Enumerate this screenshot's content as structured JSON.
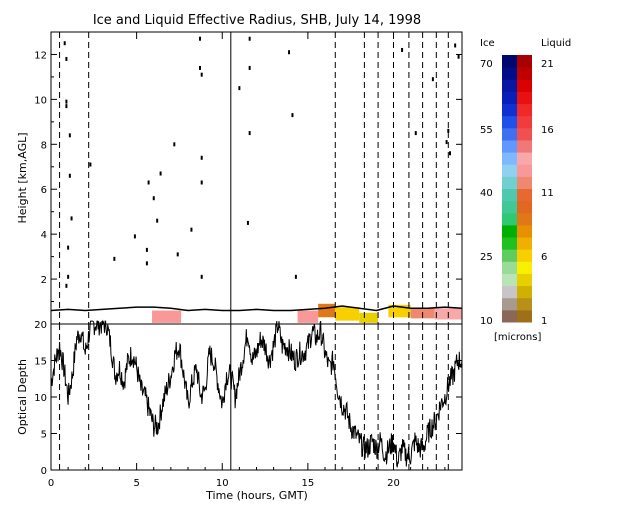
{
  "chart_data": [
    {
      "type": "heatmap",
      "title": "Ice and Liquid Effective Radius, SHB, July 14, 1998",
      "ylabel": "Height [km,AGL]",
      "xlim": [
        0,
        24
      ],
      "ylim": [
        0,
        13
      ],
      "y_ticks": [
        "2",
        "4",
        "6",
        "8",
        "10",
        "12"
      ],
      "vertical_dashed_lines_hours": [
        0.5,
        2.2,
        16.6,
        18.3,
        19.1,
        20.0,
        20.9,
        21.7,
        22.5,
        23.2
      ],
      "vertical_solid_line_hours": 10.5,
      "cloud_base_outline": [
        [
          0,
          0.6
        ],
        [
          1,
          0.65
        ],
        [
          2,
          0.6
        ],
        [
          3,
          0.65
        ],
        [
          4,
          0.7
        ],
        [
          5,
          0.75
        ],
        [
          6,
          0.75
        ],
        [
          7,
          0.7
        ],
        [
          8,
          0.6
        ],
        [
          9,
          0.65
        ],
        [
          10,
          0.6
        ],
        [
          11,
          0.6
        ],
        [
          12,
          0.65
        ],
        [
          13,
          0.6
        ],
        [
          14,
          0.6
        ],
        [
          15,
          0.65
        ],
        [
          16,
          0.7
        ],
        [
          17,
          0.8
        ],
        [
          18,
          0.7
        ],
        [
          19,
          0.6
        ],
        [
          20,
          0.8
        ],
        [
          21,
          0.7
        ],
        [
          22,
          0.7
        ],
        [
          23,
          0.75
        ],
        [
          24,
          0.7
        ]
      ],
      "liquid_patches": [
        {
          "t0": 5.9,
          "t1": 7.6,
          "z0": 0.05,
          "z1": 0.6,
          "radius_microns": 12
        },
        {
          "t0": 14.4,
          "t1": 15.6,
          "z0": 0.05,
          "z1": 0.6,
          "radius_microns": 12
        },
        {
          "t0": 15.6,
          "t1": 16.6,
          "z0": 0.3,
          "z1": 0.9,
          "radius_microns": 9
        },
        {
          "t0": 16.6,
          "t1": 18.0,
          "z0": 0.15,
          "z1": 0.75,
          "radius_microns": 6
        },
        {
          "t0": 18.0,
          "t1": 19.1,
          "z0": 0.05,
          "z1": 0.5,
          "radius_microns": 4
        },
        {
          "t0": 19.7,
          "t1": 21.0,
          "z0": 0.3,
          "z1": 0.85,
          "radius_microns": 6
        },
        {
          "t0": 21.0,
          "t1": 22.4,
          "z0": 0.25,
          "z1": 0.7,
          "radius_microns": 11
        },
        {
          "t0": 22.4,
          "t1": 24.0,
          "z0": 0.2,
          "z1": 0.7,
          "radius_microns": 13
        }
      ],
      "ice_specks": [
        [
          0.8,
          12.5
        ],
        [
          0.9,
          11.8
        ],
        [
          0.9,
          9.9
        ],
        [
          0.9,
          9.7
        ],
        [
          1.1,
          6.6
        ],
        [
          1.2,
          4.7
        ],
        [
          1.0,
          3.4
        ],
        [
          1.0,
          2.1
        ],
        [
          2.3,
          7.1
        ],
        [
          1.1,
          8.4
        ],
        [
          0.9,
          1.7
        ],
        [
          3.7,
          2.9
        ],
        [
          4.9,
          3.9
        ],
        [
          5.6,
          3.3
        ],
        [
          5.6,
          2.7
        ],
        [
          6.0,
          5.6
        ],
        [
          5.7,
          6.3
        ],
        [
          6.2,
          4.6
        ],
        [
          6.4,
          6.7
        ],
        [
          7.2,
          8.0
        ],
        [
          8.7,
          11.4
        ],
        [
          8.8,
          11.1
        ],
        [
          8.8,
          7.4
        ],
        [
          8.8,
          6.3
        ],
        [
          8.8,
          2.1
        ],
        [
          8.2,
          4.2
        ],
        [
          7.4,
          3.1
        ],
        [
          8.7,
          12.7
        ],
        [
          11.6,
          12.7
        ],
        [
          11.6,
          11.4
        ],
        [
          11.0,
          10.5
        ],
        [
          11.6,
          8.5
        ],
        [
          11.5,
          4.5
        ],
        [
          13.9,
          12.1
        ],
        [
          14.3,
          2.1
        ],
        [
          14.1,
          9.3
        ],
        [
          20.5,
          12.2
        ],
        [
          21.3,
          8.5
        ],
        [
          22.3,
          10.9
        ],
        [
          23.2,
          8.6
        ],
        [
          23.1,
          8.1
        ],
        [
          23.3,
          7.6
        ],
        [
          23.6,
          12.4
        ],
        [
          23.8,
          11.9
        ]
      ],
      "colorbar": {
        "ice_header": "Ice",
        "liquid_header": "Liquid",
        "ice_ticks": [
          "70",
          "55",
          "40",
          "25",
          "10"
        ],
        "liquid_ticks": [
          "21",
          "16",
          "11",
          "6",
          "1"
        ],
        "units": "[microns]",
        "ice_colors": [
          "#8a6858",
          "#a89a90",
          "#c8c4c8",
          "#b8e4b8",
          "#98dc98",
          "#60cc60",
          "#20c020",
          "#00b000",
          "#30c870",
          "#40c898",
          "#50c8b0",
          "#70d0d0",
          "#90d0f0",
          "#80b8ff",
          "#6098ff",
          "#4070f0",
          "#2050e8",
          "#1030d0",
          "#0820b8",
          "#0818a0",
          "#000c88",
          "#000870"
        ],
        "liquid_colors": [
          "#a07018",
          "#b89018",
          "#d0b000",
          "#e8d000",
          "#f8f000",
          "#f8d000",
          "#f0b000",
          "#e89000",
          "#e07818",
          "#e06820",
          "#e86830",
          "#f08870",
          "#f89898",
          "#f8a8a8",
          "#f07878",
          "#f05050",
          "#f03c3c",
          "#f02828",
          "#e81010",
          "#d80000",
          "#c00000",
          "#a80000"
        ]
      }
    },
    {
      "type": "line",
      "xlabel": "Time (hours, GMT)",
      "ylabel": "Optical Depth",
      "xlim": [
        0,
        24
      ],
      "ylim": [
        0,
        20
      ],
      "x_ticks": [
        "0",
        "5",
        "10",
        "15",
        "20"
      ],
      "y_ticks": [
        "0",
        "5",
        "10",
        "15",
        "20"
      ],
      "vertical_dashed_lines_hours": [
        0.5,
        2.2,
        16.6,
        18.3,
        19.1,
        20.0,
        20.9,
        21.7,
        22.5,
        23.2
      ],
      "vertical_solid_line_hours": 10.5,
      "series": [
        {
          "x": [
            0,
            0.25,
            0.5,
            0.75,
            1,
            1.25,
            1.5,
            1.75,
            2,
            2.25,
            2.5,
            2.75,
            3,
            3.25,
            3.5,
            3.75,
            4,
            4.25,
            4.5,
            4.75,
            5,
            5.25,
            5.5,
            5.75,
            6,
            6.25,
            6.5,
            6.75,
            7,
            7.25,
            7.5,
            7.75,
            8,
            8.25,
            8.5,
            8.75,
            9,
            9.25,
            9.5,
            9.75,
            10,
            10.25,
            10.5,
            10.75,
            11,
            11.25,
            11.5,
            11.75,
            12,
            12.25,
            12.5,
            12.75,
            13,
            13.25,
            13.5,
            13.75,
            14,
            14.25,
            14.5,
            14.75,
            15,
            15.25,
            15.5,
            15.75,
            16,
            16.25,
            16.5,
            16.75,
            17,
            17.25,
            17.5,
            17.75,
            18,
            18.25,
            18.5,
            18.75,
            19,
            19.25,
            19.5,
            19.75,
            20,
            20.25,
            20.5,
            20.75,
            21,
            21.25,
            21.5,
            21.75,
            22,
            22.25,
            22.5,
            22.75,
            23,
            23.25,
            23.5,
            23.75,
            24
          ],
          "values": [
            12,
            15,
            17,
            14,
            10,
            13,
            18,
            19,
            16,
            19,
            20,
            20,
            20,
            20,
            17,
            13,
            14,
            12,
            15,
            16,
            14,
            11,
            10,
            8,
            6,
            6,
            9,
            11,
            13,
            16,
            17,
            13,
            9,
            12,
            14,
            10,
            11,
            16,
            15,
            12,
            9,
            13,
            13,
            10,
            13,
            16,
            19,
            15,
            16,
            18,
            17,
            15,
            17,
            20,
            17,
            17,
            16,
            15,
            16,
            16,
            17,
            19,
            18,
            19,
            16,
            14,
            15,
            11,
            9,
            8,
            6,
            5,
            4,
            3,
            3,
            4,
            3,
            4,
            2,
            3,
            4,
            1,
            3,
            2,
            2,
            4,
            3,
            3,
            5,
            6,
            7,
            9,
            10,
            12,
            13,
            15,
            15
          ]
        }
      ]
    }
  ]
}
